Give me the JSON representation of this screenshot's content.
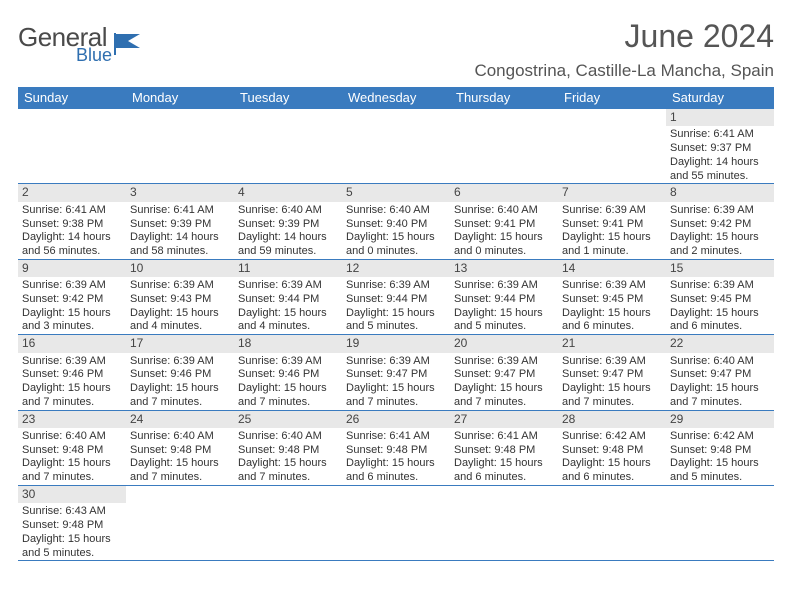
{
  "logo": {
    "text1": "General",
    "text2": "Blue",
    "flag_color": "#2f6fb0"
  },
  "title": "June 2024",
  "location": "Congostrina, Castille-La Mancha, Spain",
  "colors": {
    "header_bg": "#3a7bbf",
    "header_text": "#ffffff",
    "daynum_bg": "#e8e8e8",
    "row_border": "#3a7bbf",
    "text": "#333333",
    "title_text": "#555555"
  },
  "fonts": {
    "title_size_pt": 24,
    "location_size_pt": 13,
    "dayhead_size_pt": 10,
    "body_size_pt": 8
  },
  "day_headers": [
    "Sunday",
    "Monday",
    "Tuesday",
    "Wednesday",
    "Thursday",
    "Friday",
    "Saturday"
  ],
  "weeks": [
    [
      {
        "n": "",
        "sr": "",
        "ss": "",
        "dl": ""
      },
      {
        "n": "",
        "sr": "",
        "ss": "",
        "dl": ""
      },
      {
        "n": "",
        "sr": "",
        "ss": "",
        "dl": ""
      },
      {
        "n": "",
        "sr": "",
        "ss": "",
        "dl": ""
      },
      {
        "n": "",
        "sr": "",
        "ss": "",
        "dl": ""
      },
      {
        "n": "",
        "sr": "",
        "ss": "",
        "dl": ""
      },
      {
        "n": "1",
        "sr": "Sunrise: 6:41 AM",
        "ss": "Sunset: 9:37 PM",
        "dl": "Daylight: 14 hours and 55 minutes."
      }
    ],
    [
      {
        "n": "2",
        "sr": "Sunrise: 6:41 AM",
        "ss": "Sunset: 9:38 PM",
        "dl": "Daylight: 14 hours and 56 minutes."
      },
      {
        "n": "3",
        "sr": "Sunrise: 6:41 AM",
        "ss": "Sunset: 9:39 PM",
        "dl": "Daylight: 14 hours and 58 minutes."
      },
      {
        "n": "4",
        "sr": "Sunrise: 6:40 AM",
        "ss": "Sunset: 9:39 PM",
        "dl": "Daylight: 14 hours and 59 minutes."
      },
      {
        "n": "5",
        "sr": "Sunrise: 6:40 AM",
        "ss": "Sunset: 9:40 PM",
        "dl": "Daylight: 15 hours and 0 minutes."
      },
      {
        "n": "6",
        "sr": "Sunrise: 6:40 AM",
        "ss": "Sunset: 9:41 PM",
        "dl": "Daylight: 15 hours and 0 minutes."
      },
      {
        "n": "7",
        "sr": "Sunrise: 6:39 AM",
        "ss": "Sunset: 9:41 PM",
        "dl": "Daylight: 15 hours and 1 minute."
      },
      {
        "n": "8",
        "sr": "Sunrise: 6:39 AM",
        "ss": "Sunset: 9:42 PM",
        "dl": "Daylight: 15 hours and 2 minutes."
      }
    ],
    [
      {
        "n": "9",
        "sr": "Sunrise: 6:39 AM",
        "ss": "Sunset: 9:42 PM",
        "dl": "Daylight: 15 hours and 3 minutes."
      },
      {
        "n": "10",
        "sr": "Sunrise: 6:39 AM",
        "ss": "Sunset: 9:43 PM",
        "dl": "Daylight: 15 hours and 4 minutes."
      },
      {
        "n": "11",
        "sr": "Sunrise: 6:39 AM",
        "ss": "Sunset: 9:44 PM",
        "dl": "Daylight: 15 hours and 4 minutes."
      },
      {
        "n": "12",
        "sr": "Sunrise: 6:39 AM",
        "ss": "Sunset: 9:44 PM",
        "dl": "Daylight: 15 hours and 5 minutes."
      },
      {
        "n": "13",
        "sr": "Sunrise: 6:39 AM",
        "ss": "Sunset: 9:44 PM",
        "dl": "Daylight: 15 hours and 5 minutes."
      },
      {
        "n": "14",
        "sr": "Sunrise: 6:39 AM",
        "ss": "Sunset: 9:45 PM",
        "dl": "Daylight: 15 hours and 6 minutes."
      },
      {
        "n": "15",
        "sr": "Sunrise: 6:39 AM",
        "ss": "Sunset: 9:45 PM",
        "dl": "Daylight: 15 hours and 6 minutes."
      }
    ],
    [
      {
        "n": "16",
        "sr": "Sunrise: 6:39 AM",
        "ss": "Sunset: 9:46 PM",
        "dl": "Daylight: 15 hours and 7 minutes."
      },
      {
        "n": "17",
        "sr": "Sunrise: 6:39 AM",
        "ss": "Sunset: 9:46 PM",
        "dl": "Daylight: 15 hours and 7 minutes."
      },
      {
        "n": "18",
        "sr": "Sunrise: 6:39 AM",
        "ss": "Sunset: 9:46 PM",
        "dl": "Daylight: 15 hours and 7 minutes."
      },
      {
        "n": "19",
        "sr": "Sunrise: 6:39 AM",
        "ss": "Sunset: 9:47 PM",
        "dl": "Daylight: 15 hours and 7 minutes."
      },
      {
        "n": "20",
        "sr": "Sunrise: 6:39 AM",
        "ss": "Sunset: 9:47 PM",
        "dl": "Daylight: 15 hours and 7 minutes."
      },
      {
        "n": "21",
        "sr": "Sunrise: 6:39 AM",
        "ss": "Sunset: 9:47 PM",
        "dl": "Daylight: 15 hours and 7 minutes."
      },
      {
        "n": "22",
        "sr": "Sunrise: 6:40 AM",
        "ss": "Sunset: 9:47 PM",
        "dl": "Daylight: 15 hours and 7 minutes."
      }
    ],
    [
      {
        "n": "23",
        "sr": "Sunrise: 6:40 AM",
        "ss": "Sunset: 9:48 PM",
        "dl": "Daylight: 15 hours and 7 minutes."
      },
      {
        "n": "24",
        "sr": "Sunrise: 6:40 AM",
        "ss": "Sunset: 9:48 PM",
        "dl": "Daylight: 15 hours and 7 minutes."
      },
      {
        "n": "25",
        "sr": "Sunrise: 6:40 AM",
        "ss": "Sunset: 9:48 PM",
        "dl": "Daylight: 15 hours and 7 minutes."
      },
      {
        "n": "26",
        "sr": "Sunrise: 6:41 AM",
        "ss": "Sunset: 9:48 PM",
        "dl": "Daylight: 15 hours and 6 minutes."
      },
      {
        "n": "27",
        "sr": "Sunrise: 6:41 AM",
        "ss": "Sunset: 9:48 PM",
        "dl": "Daylight: 15 hours and 6 minutes."
      },
      {
        "n": "28",
        "sr": "Sunrise: 6:42 AM",
        "ss": "Sunset: 9:48 PM",
        "dl": "Daylight: 15 hours and 6 minutes."
      },
      {
        "n": "29",
        "sr": "Sunrise: 6:42 AM",
        "ss": "Sunset: 9:48 PM",
        "dl": "Daylight: 15 hours and 5 minutes."
      }
    ],
    [
      {
        "n": "30",
        "sr": "Sunrise: 6:43 AM",
        "ss": "Sunset: 9:48 PM",
        "dl": "Daylight: 15 hours and 5 minutes."
      },
      {
        "n": "",
        "sr": "",
        "ss": "",
        "dl": ""
      },
      {
        "n": "",
        "sr": "",
        "ss": "",
        "dl": ""
      },
      {
        "n": "",
        "sr": "",
        "ss": "",
        "dl": ""
      },
      {
        "n": "",
        "sr": "",
        "ss": "",
        "dl": ""
      },
      {
        "n": "",
        "sr": "",
        "ss": "",
        "dl": ""
      },
      {
        "n": "",
        "sr": "",
        "ss": "",
        "dl": ""
      }
    ]
  ]
}
